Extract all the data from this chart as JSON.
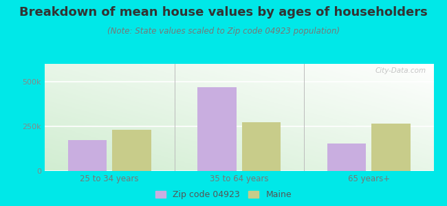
{
  "title": "Breakdown of mean house values by ages of householders",
  "subtitle": "(Note: State values scaled to Zip code 04923 population)",
  "categories": [
    "25 to 34 years",
    "35 to 64 years",
    "65 years+"
  ],
  "zip_values": [
    175000,
    470000,
    155000
  ],
  "maine_values": [
    230000,
    275000,
    265000
  ],
  "zip_color": "#c9aee0",
  "maine_color": "#c8cc8a",
  "outer_bg": "#00e8e8",
  "plot_bg_colors": [
    "#c5e8c5",
    "#eaf5ea",
    "#f5faf5",
    "#ffffff"
  ],
  "ylim": [
    0,
    600000
  ],
  "yticks": [
    0,
    250000,
    500000
  ],
  "ytick_labels": [
    "0",
    "250k",
    "500k"
  ],
  "legend_zip_label": "Zip code 04923",
  "legend_maine_label": "Maine",
  "bar_width": 0.3,
  "title_fontsize": 13,
  "subtitle_fontsize": 8.5,
  "watermark": "City-Data.com"
}
